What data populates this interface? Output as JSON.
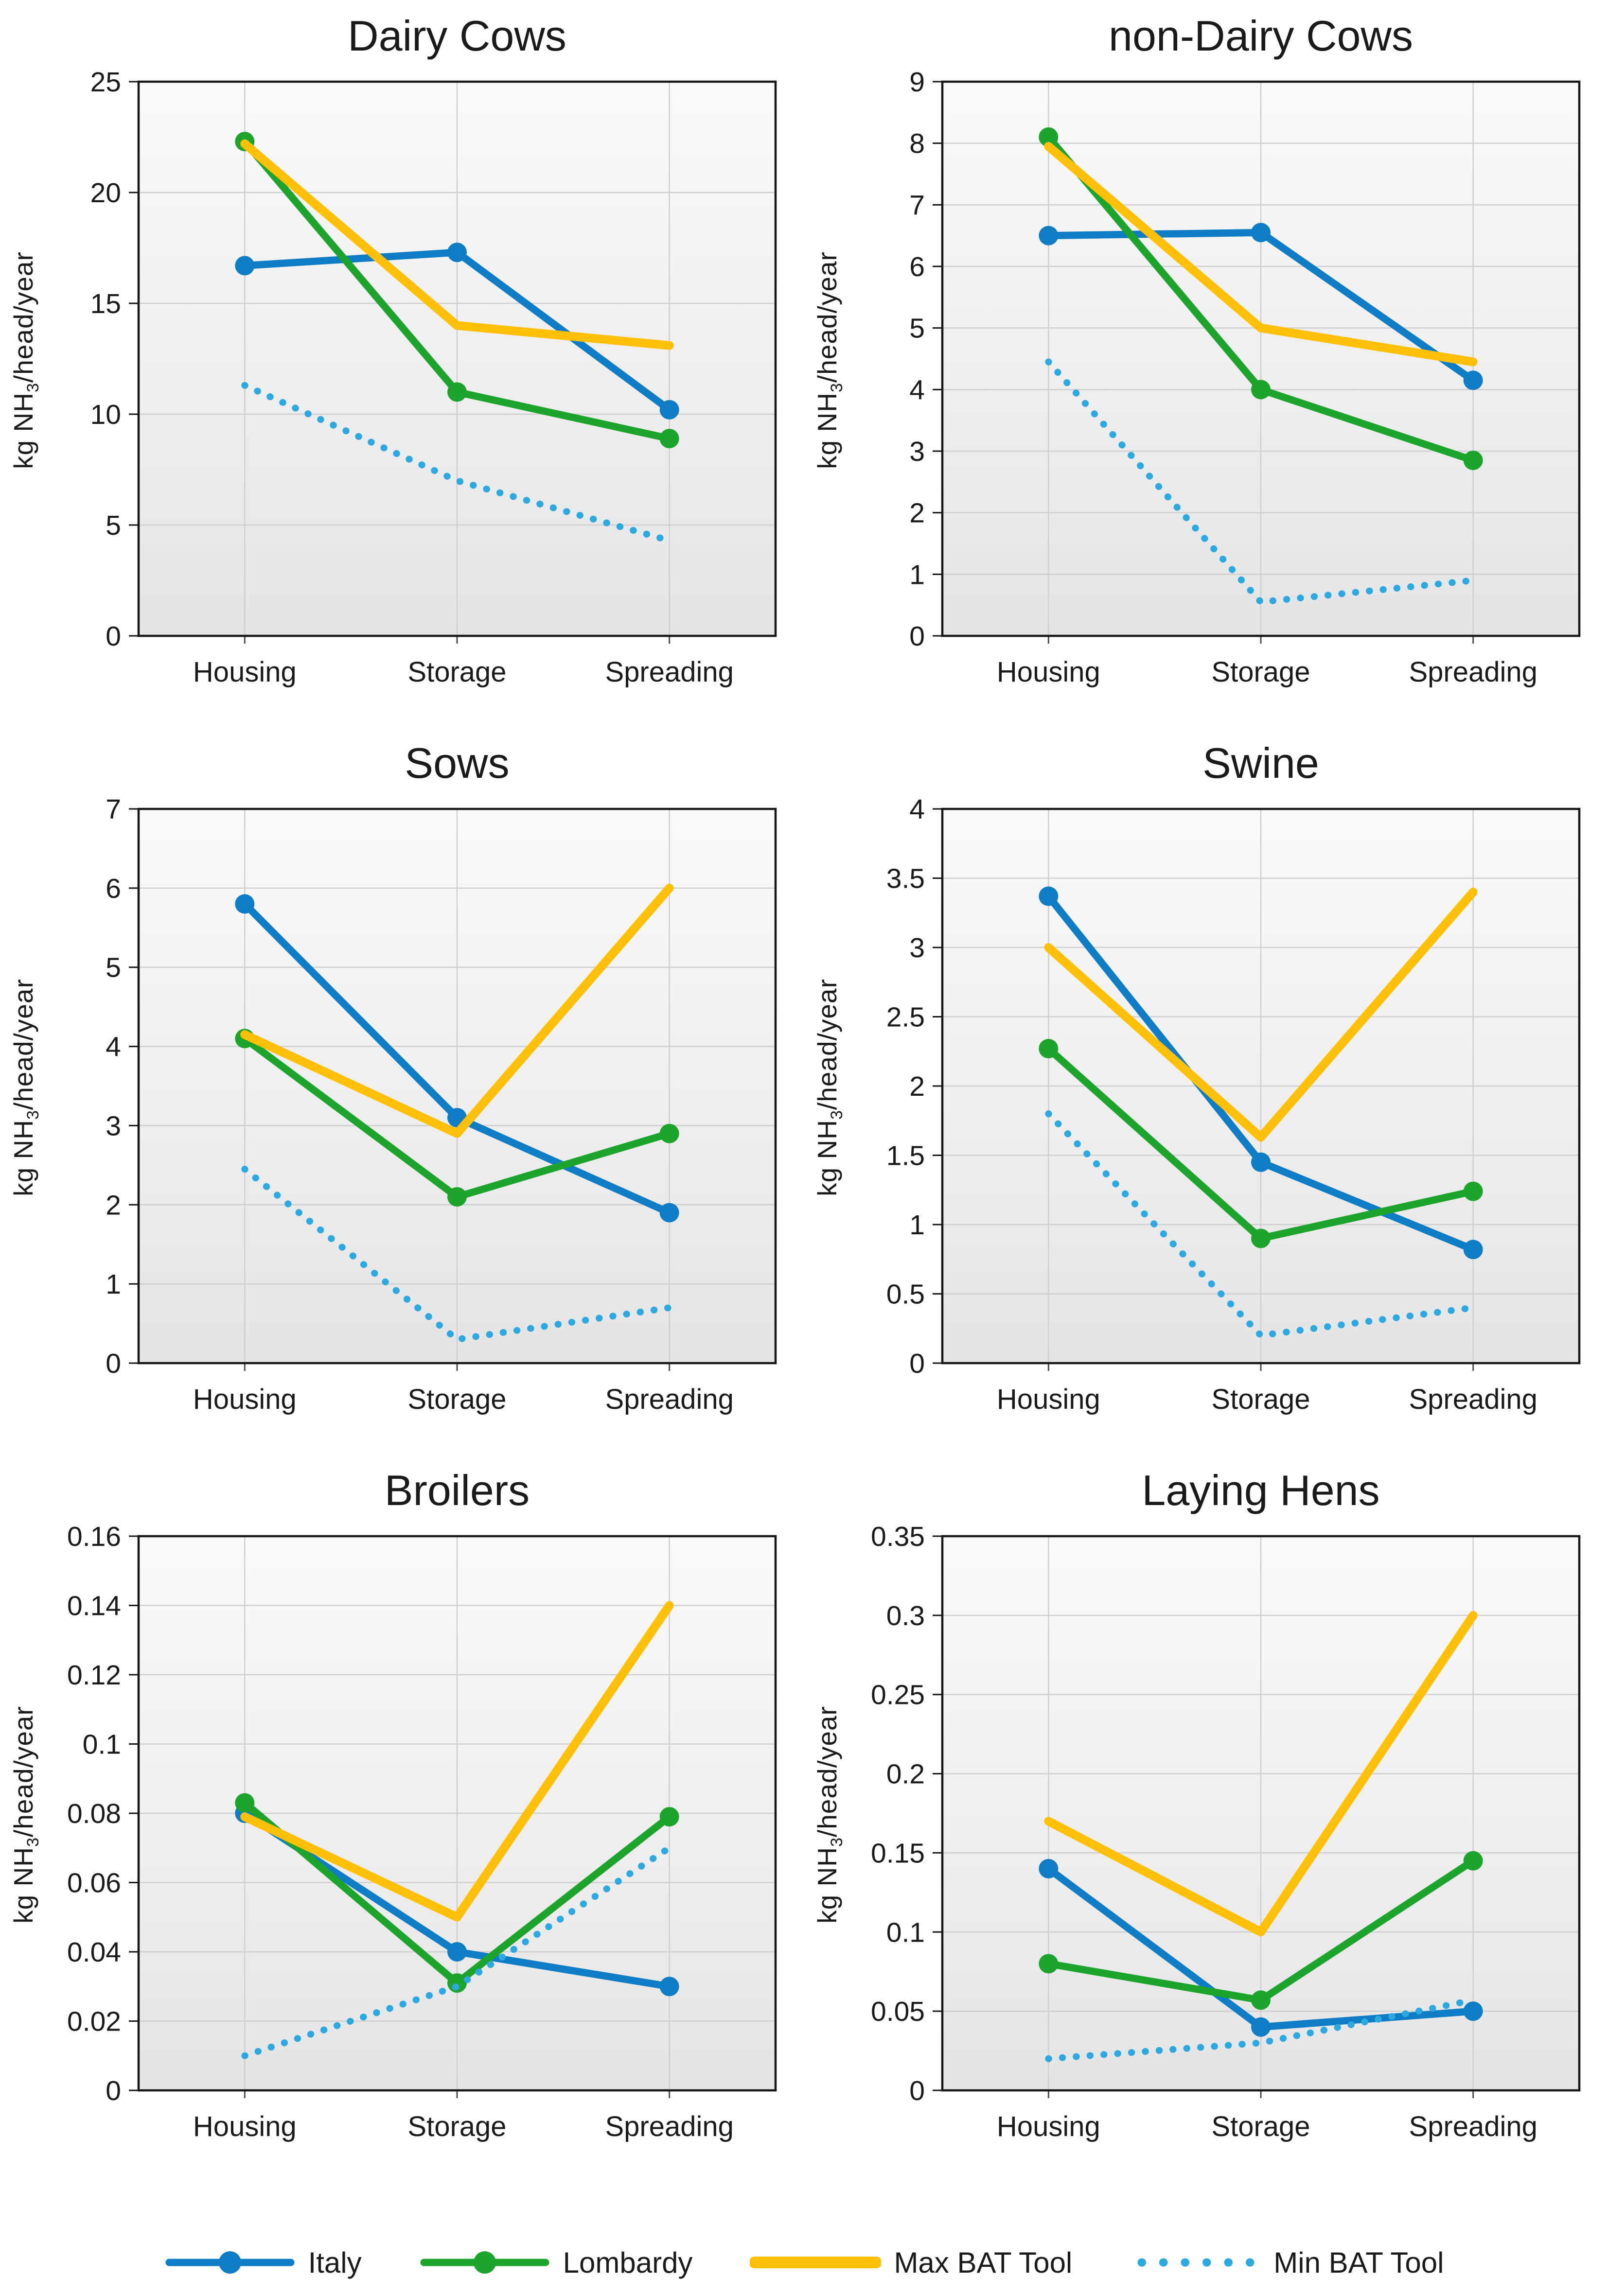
{
  "figure": {
    "y_axis_title": {
      "prefix": "kg NH",
      "sub": "3",
      "suffix": "/head/year"
    },
    "colors": {
      "italy": "#0E7DC5",
      "lombardy": "#1CA42C",
      "max_bat": "#FFC007",
      "min_bat": "#2BA9E0",
      "grid": "#CFCFCF",
      "border": "#161616",
      "text": "#1A1A1A",
      "plot_bg_top": "#FAFAFA",
      "plot_bg_bottom": "#E5E5E5"
    },
    "legend": [
      {
        "name": "Italy",
        "style": "line-marker",
        "color_key": "italy"
      },
      {
        "name": "Lombardy",
        "style": "line-marker",
        "color_key": "lombardy"
      },
      {
        "name": "Max BAT Tool",
        "style": "line",
        "color_key": "max_bat"
      },
      {
        "name": "Min BAT Tool",
        "style": "dotted",
        "color_key": "min_bat"
      }
    ]
  },
  "chart_data": [
    {
      "type": "line",
      "title": "Dairy Cows",
      "categories": [
        "Housing",
        "Storage",
        "Spreading"
      ],
      "ylabel": "kg NH3/head/year",
      "ylim": [
        0,
        25
      ],
      "ytick_step": 5,
      "grid": true,
      "series": [
        {
          "name": "Italy",
          "style": "line-marker",
          "color_key": "italy",
          "values": [
            16.7,
            17.3,
            10.2
          ]
        },
        {
          "name": "Lombardy",
          "style": "line-marker",
          "color_key": "lombardy",
          "values": [
            22.3,
            11.0,
            8.9
          ]
        },
        {
          "name": "Max BAT Tool",
          "style": "line",
          "color_key": "max_bat",
          "values": [
            22.2,
            14.0,
            13.1
          ]
        },
        {
          "name": "Min BAT Tool",
          "style": "dotted",
          "color_key": "min_bat",
          "values": [
            11.3,
            7.0,
            4.3
          ]
        }
      ]
    },
    {
      "type": "line",
      "title": "non-Dairy Cows",
      "categories": [
        "Housing",
        "Storage",
        "Spreading"
      ],
      "ylabel": "kg NH3/head/year",
      "ylim": [
        0,
        9
      ],
      "ytick_step": 1,
      "grid": true,
      "series": [
        {
          "name": "Italy",
          "style": "line-marker",
          "color_key": "italy",
          "values": [
            6.5,
            6.55,
            4.15
          ]
        },
        {
          "name": "Lombardy",
          "style": "line-marker",
          "color_key": "lombardy",
          "values": [
            8.1,
            4.0,
            2.85
          ]
        },
        {
          "name": "Max BAT Tool",
          "style": "line",
          "color_key": "max_bat",
          "values": [
            7.95,
            5.0,
            4.45
          ]
        },
        {
          "name": "Min BAT Tool",
          "style": "dotted",
          "color_key": "min_bat",
          "values": [
            4.45,
            0.55,
            0.9
          ]
        }
      ]
    },
    {
      "type": "line",
      "title": "Sows",
      "categories": [
        "Housing",
        "Storage",
        "Spreading"
      ],
      "ylabel": "kg NH3/head/year",
      "ylim": [
        0,
        7
      ],
      "ytick_step": 1,
      "grid": true,
      "series": [
        {
          "name": "Italy",
          "style": "line-marker",
          "color_key": "italy",
          "values": [
            5.8,
            3.1,
            1.9
          ]
        },
        {
          "name": "Lombardy",
          "style": "line-marker",
          "color_key": "lombardy",
          "values": [
            4.1,
            2.1,
            2.9
          ]
        },
        {
          "name": "Max BAT Tool",
          "style": "line",
          "color_key": "max_bat",
          "values": [
            4.15,
            2.9,
            6.0
          ]
        },
        {
          "name": "Min BAT Tool",
          "style": "dotted",
          "color_key": "min_bat",
          "values": [
            2.45,
            0.3,
            0.7
          ]
        }
      ]
    },
    {
      "type": "line",
      "title": "Swine",
      "categories": [
        "Housing",
        "Storage",
        "Spreading"
      ],
      "ylabel": "kg NH3/head/year",
      "ylim": [
        0,
        4
      ],
      "ytick_step": 0.5,
      "grid": true,
      "series": [
        {
          "name": "Italy",
          "style": "line-marker",
          "color_key": "italy",
          "values": [
            3.37,
            1.45,
            0.82
          ]
        },
        {
          "name": "Lombardy",
          "style": "line-marker",
          "color_key": "lombardy",
          "values": [
            2.27,
            0.9,
            1.24
          ]
        },
        {
          "name": "Max BAT Tool",
          "style": "line",
          "color_key": "max_bat",
          "values": [
            3.0,
            1.63,
            3.4
          ]
        },
        {
          "name": "Min BAT Tool",
          "style": "dotted",
          "color_key": "min_bat",
          "values": [
            1.8,
            0.2,
            0.4
          ]
        }
      ]
    },
    {
      "type": "line",
      "title": "Broilers",
      "categories": [
        "Housing",
        "Storage",
        "Spreading"
      ],
      "ylabel": "kg NH3/head/year",
      "ylim": [
        0,
        0.16
      ],
      "ytick_step": 0.02,
      "grid": true,
      "series": [
        {
          "name": "Italy",
          "style": "line-marker",
          "color_key": "italy",
          "values": [
            0.08,
            0.04,
            0.03
          ]
        },
        {
          "name": "Lombardy",
          "style": "line-marker",
          "color_key": "lombardy",
          "values": [
            0.083,
            0.031,
            0.079
          ]
        },
        {
          "name": "Max BAT Tool",
          "style": "line",
          "color_key": "max_bat",
          "values": [
            0.079,
            0.05,
            0.14
          ]
        },
        {
          "name": "Min BAT Tool",
          "style": "dotted",
          "color_key": "min_bat",
          "values": [
            0.01,
            0.03,
            0.07
          ]
        }
      ]
    },
    {
      "type": "line",
      "title": "Laying Hens",
      "categories": [
        "Housing",
        "Storage",
        "Spreading"
      ],
      "ylabel": "kg NH3/head/year",
      "ylim": [
        0,
        0.35
      ],
      "ytick_step": 0.05,
      "grid": true,
      "series": [
        {
          "name": "Italy",
          "style": "line-marker",
          "color_key": "italy",
          "values": [
            0.14,
            0.04,
            0.05
          ]
        },
        {
          "name": "Lombardy",
          "style": "line-marker",
          "color_key": "lombardy",
          "values": [
            0.08,
            0.057,
            0.145
          ]
        },
        {
          "name": "Max BAT Tool",
          "style": "line",
          "color_key": "max_bat",
          "values": [
            0.17,
            0.1,
            0.3
          ]
        },
        {
          "name": "Min BAT Tool",
          "style": "dotted",
          "color_key": "min_bat",
          "values": [
            0.02,
            0.03,
            0.057
          ]
        }
      ]
    }
  ]
}
